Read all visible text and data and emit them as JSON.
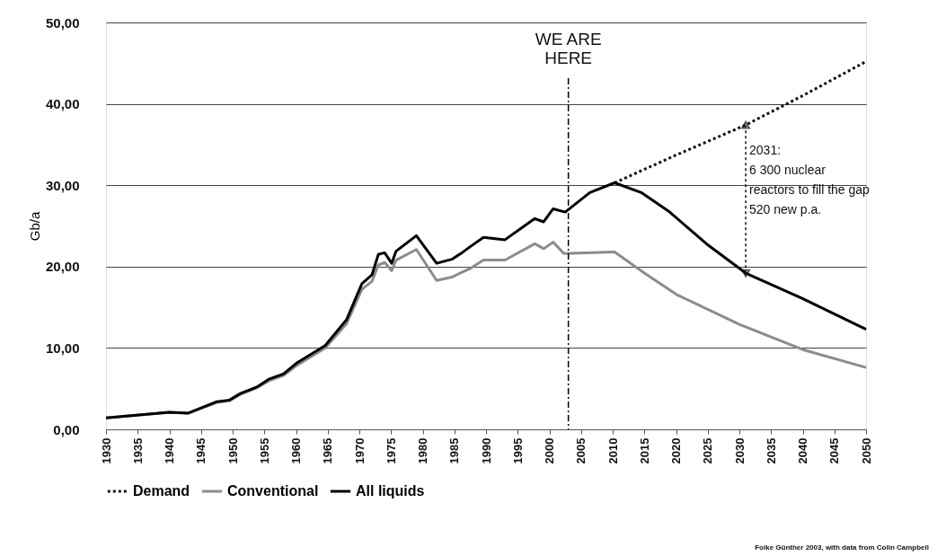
{
  "chart_data": {
    "type": "line",
    "ylabel": "Gb/a",
    "xlim": [
      1930,
      2050
    ],
    "xticks": [
      1930,
      1935,
      1940,
      1945,
      1950,
      1955,
      1960,
      1965,
      1970,
      1975,
      1980,
      1985,
      1990,
      1995,
      2000,
      2005,
      2010,
      2015,
      2020,
      2025,
      2030,
      2035,
      2040,
      2045,
      2050
    ],
    "ylim": [
      0,
      50
    ],
    "yticks": [
      {
        "value": 0,
        "label": "0,00"
      },
      {
        "value": 10,
        "label": "10,00"
      },
      {
        "value": 20,
        "label": "20,00"
      },
      {
        "value": 30,
        "label": "30,00"
      },
      {
        "value": 40,
        "label": "40,00"
      },
      {
        "value": 50,
        "label": "50,00"
      }
    ],
    "grid": "y",
    "legend": "bottom",
    "series": [
      {
        "name": "Demand",
        "color": "#111111",
        "line_style": "dotted",
        "x": [
          2010.3,
          2020,
          2031,
          2040,
          2050
        ],
        "values": [
          30.3,
          33.7,
          37.4,
          41.0,
          45.2
        ]
      },
      {
        "name": "Conventional",
        "color": "#8c8c8c",
        "line_style": "solid",
        "x": [
          1930,
          1940,
          1943,
          1947.5,
          1949.5,
          1951.2,
          1953.8,
          1955.8,
          1958,
          1960.2,
          1964.6,
          1968,
          1970.4,
          1972,
          1973,
          1974,
          1975.1,
          1975.8,
          1979,
          1982.2,
          1984.6,
          1986.2,
          1987.6,
          1989.6,
          1993,
          1997.7,
          1999.1,
          2000.6,
          2002.3,
          2010.3,
          2015,
          2020,
          2030,
          2040,
          2050
        ],
        "values": [
          1.4,
          2.1,
          2.0,
          3.3,
          3.5,
          4.3,
          5.1,
          6.0,
          6.6,
          7.9,
          10.0,
          13.0,
          17.2,
          18.2,
          20.2,
          20.5,
          19.5,
          20.8,
          22.1,
          18.3,
          18.7,
          19.3,
          19.8,
          20.8,
          20.8,
          22.8,
          22.2,
          23.0,
          21.6,
          21.8,
          19.2,
          16.6,
          12.9,
          9.8,
          7.6
        ]
      },
      {
        "name": "All liquids",
        "color": "#000000",
        "line_style": "solid",
        "x": [
          1930,
          1940,
          1943,
          1947.5,
          1949.5,
          1951.2,
          1953.8,
          1955.8,
          1958,
          1960.2,
          1964.6,
          1968,
          1970.4,
          1972,
          1973,
          1974,
          1975.1,
          1975.8,
          1979,
          1982.2,
          1984.6,
          1986.2,
          1987.6,
          1989.6,
          1993,
          1997.7,
          1999.1,
          2000.6,
          2002.5,
          2006.4,
          2010.3,
          2014.5,
          2019,
          2024.8,
          2031,
          2039.9,
          2050
        ],
        "values": [
          1.4,
          2.1,
          2.0,
          3.4,
          3.6,
          4.4,
          5.2,
          6.2,
          6.8,
          8.2,
          10.3,
          13.5,
          17.9,
          19.0,
          21.5,
          21.7,
          20.4,
          21.9,
          23.8,
          20.4,
          20.9,
          21.7,
          22.5,
          23.6,
          23.3,
          25.9,
          25.5,
          27.1,
          26.7,
          29.1,
          30.3,
          29.1,
          26.7,
          22.8,
          19.2,
          16.1,
          12.3
        ]
      }
    ],
    "ref_lines": [
      {
        "axis": "x",
        "value": 2003,
        "label": "WE ARE\nHERE",
        "line_style": "dashed"
      }
    ],
    "annotations": [
      {
        "text": "2031:\n6 300 nuclear\nreactors to fill the gap\n520 new p.a.",
        "x": 2031,
        "y": 37.4
      },
      "Folke Günther 2003, with data from Colin Campbell"
    ]
  }
}
